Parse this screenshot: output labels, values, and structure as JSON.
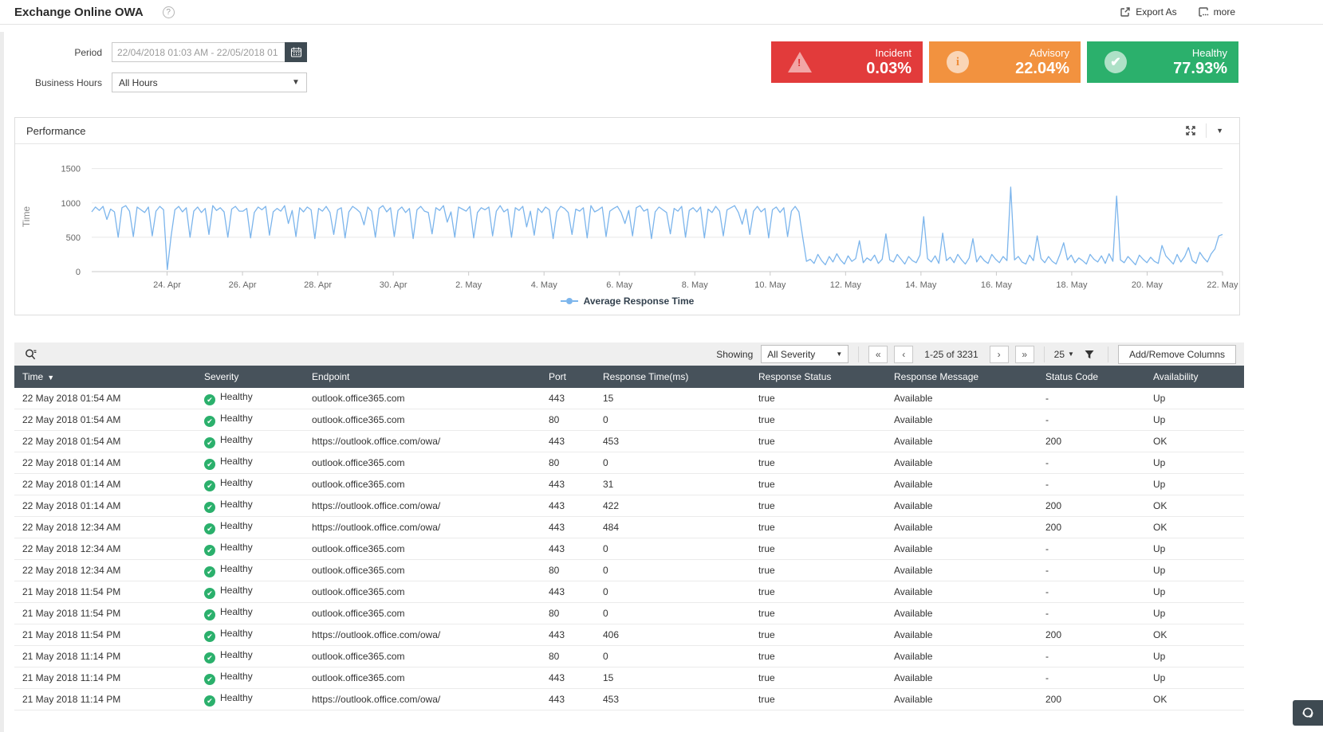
{
  "header": {
    "title": "Exchange Online OWA",
    "export_label": "Export As",
    "more_label": "more"
  },
  "filters": {
    "period_label": "Period",
    "period_value": "22/04/2018 01:03 AM - 22/05/2018 01",
    "business_hours_label": "Business Hours",
    "business_hours_value": "All Hours"
  },
  "status_cards": [
    {
      "label": "Incident",
      "value": "0.03%",
      "color": "#e23b3b",
      "icon": "warning-triangle-icon"
    },
    {
      "label": "Advisory",
      "value": "22.04%",
      "color": "#f2923f",
      "icon": "info-circle-icon"
    },
    {
      "label": "Healthy",
      "value": "77.93%",
      "color": "#2bb06c",
      "icon": "check-circle-icon"
    }
  ],
  "performance": {
    "title": "Performance"
  },
  "chart_data": {
    "type": "line",
    "title": "Performance",
    "ylabel": "Time",
    "xlabel": "",
    "grid": true,
    "legend_position": "bottom",
    "y_ticks": [
      0,
      500,
      1000,
      1500
    ],
    "y_max": 1600,
    "x_domain_days": [
      0,
      30
    ],
    "x_tick_days": [
      2,
      4,
      6,
      8,
      10,
      12,
      14,
      16,
      18,
      20,
      22,
      24,
      26,
      28,
      30
    ],
    "x_tick_labels": [
      "24. Apr",
      "26. Apr",
      "28. Apr",
      "30. Apr",
      "2. May",
      "4. May",
      "6. May",
      "8. May",
      "10. May",
      "12. May",
      "14. May",
      "16. May",
      "18. May",
      "20. May",
      "22. May"
    ],
    "series": [
      {
        "name": "Average Response Time",
        "color": "#7cb5ec",
        "y_values": [
          870,
          940,
          890,
          950,
          760,
          910,
          870,
          500,
          930,
          960,
          880,
          510,
          940,
          900,
          860,
          940,
          520,
          880,
          950,
          900,
          30,
          520,
          900,
          950,
          870,
          930,
          500,
          880,
          940,
          860,
          920,
          540,
          960,
          890,
          930,
          870,
          500,
          910,
          950,
          880,
          880,
          920,
          490,
          860,
          940,
          900,
          950,
          530,
          870,
          920,
          880,
          960,
          700,
          890,
          510,
          930,
          870,
          940,
          900,
          480,
          920,
          880,
          950,
          860,
          540,
          900,
          930,
          490,
          870,
          950,
          910,
          860,
          680,
          940,
          880,
          500,
          920,
          960,
          870,
          930,
          510,
          890,
          940,
          860,
          920,
          480,
          900,
          950,
          880,
          860,
          550,
          930,
          890,
          960,
          720,
          870,
          500,
          940,
          910,
          880,
          950,
          490,
          860,
          930,
          900,
          940,
          520,
          880,
          960,
          870,
          910,
          500,
          930,
          890,
          950,
          650,
          880,
          530,
          920,
          860,
          940,
          900,
          480,
          870,
          950,
          920,
          860,
          540,
          910,
          880,
          930,
          490,
          960,
          870,
          900,
          940,
          510,
          880,
          920,
          950,
          860,
          700,
          890,
          520,
          930,
          960,
          880,
          910,
          480,
          870,
          940,
          900,
          860,
          550,
          920,
          880,
          950,
          500,
          890,
          930,
          870,
          940,
          490,
          910,
          860,
          950,
          880,
          520,
          900,
          930,
          960,
          860,
          690,
          910,
          540,
          880,
          950,
          870,
          920,
          490,
          900,
          940,
          860,
          930,
          510,
          880,
          950,
          870,
          500,
          150,
          180,
          120,
          250,
          160,
          100,
          220,
          140,
          260,
          170,
          110,
          230,
          150,
          190,
          450,
          130,
          200,
          160,
          240,
          120,
          180,
          550,
          170,
          140,
          250,
          180,
          110,
          220,
          160,
          130,
          240,
          800,
          190,
          140,
          230,
          120,
          560,
          160,
          210,
          130,
          250,
          170,
          110,
          200,
          480,
          140,
          230,
          160,
          120,
          250,
          180,
          130,
          220,
          160,
          1230,
          170,
          220,
          140,
          110,
          240,
          160,
          520,
          190,
          130,
          220,
          150,
          110,
          250,
          420,
          170,
          240,
          130,
          200,
          160,
          110,
          250,
          180,
          140,
          230,
          120,
          260,
          150,
          1100,
          170,
          130,
          220,
          160,
          100,
          240,
          180,
          130,
          210,
          150,
          120,
          380,
          230,
          170,
          110,
          250,
          140,
          220,
          350,
          160,
          120,
          280,
          200,
          140,
          260,
          330,
          520,
          540
        ]
      }
    ]
  },
  "grid_toolbar": {
    "showing_label": "Showing",
    "severity_filter_value": "All Severity",
    "pagination": {
      "first": "«",
      "prev": "‹",
      "range": "1-25 of 3231",
      "next": "›",
      "last": "»",
      "page_size": "25"
    },
    "add_remove_columns_label": "Add/Remove Columns"
  },
  "table": {
    "columns": [
      "Time",
      "Severity",
      "Endpoint",
      "Port",
      "Response Time(ms)",
      "Response Status",
      "Response Message",
      "Status Code",
      "Availability"
    ],
    "sorted_column": "Time",
    "rows": [
      [
        "22 May 2018 01:54 AM",
        "Healthy",
        "outlook.office365.com",
        "443",
        "15",
        "true",
        "Available",
        "-",
        "Up"
      ],
      [
        "22 May 2018 01:54 AM",
        "Healthy",
        "outlook.office365.com",
        "80",
        "0",
        "true",
        "Available",
        "-",
        "Up"
      ],
      [
        "22 May 2018 01:54 AM",
        "Healthy",
        "https://outlook.office.com/owa/",
        "443",
        "453",
        "true",
        "Available",
        "200",
        "OK"
      ],
      [
        "22 May 2018 01:14 AM",
        "Healthy",
        "outlook.office365.com",
        "80",
        "0",
        "true",
        "Available",
        "-",
        "Up"
      ],
      [
        "22 May 2018 01:14 AM",
        "Healthy",
        "outlook.office365.com",
        "443",
        "31",
        "true",
        "Available",
        "-",
        "Up"
      ],
      [
        "22 May 2018 01:14 AM",
        "Healthy",
        "https://outlook.office.com/owa/",
        "443",
        "422",
        "true",
        "Available",
        "200",
        "OK"
      ],
      [
        "22 May 2018 12:34 AM",
        "Healthy",
        "https://outlook.office.com/owa/",
        "443",
        "484",
        "true",
        "Available",
        "200",
        "OK"
      ],
      [
        "22 May 2018 12:34 AM",
        "Healthy",
        "outlook.office365.com",
        "443",
        "0",
        "true",
        "Available",
        "-",
        "Up"
      ],
      [
        "22 May 2018 12:34 AM",
        "Healthy",
        "outlook.office365.com",
        "80",
        "0",
        "true",
        "Available",
        "-",
        "Up"
      ],
      [
        "21 May 2018 11:54 PM",
        "Healthy",
        "outlook.office365.com",
        "443",
        "0",
        "true",
        "Available",
        "-",
        "Up"
      ],
      [
        "21 May 2018 11:54 PM",
        "Healthy",
        "outlook.office365.com",
        "80",
        "0",
        "true",
        "Available",
        "-",
        "Up"
      ],
      [
        "21 May 2018 11:54 PM",
        "Healthy",
        "https://outlook.office.com/owa/",
        "443",
        "406",
        "true",
        "Available",
        "200",
        "OK"
      ],
      [
        "21 May 2018 11:14 PM",
        "Healthy",
        "outlook.office365.com",
        "80",
        "0",
        "true",
        "Available",
        "-",
        "Up"
      ],
      [
        "21 May 2018 11:14 PM",
        "Healthy",
        "outlook.office365.com",
        "443",
        "15",
        "true",
        "Available",
        "-",
        "Up"
      ],
      [
        "21 May 2018 11:14 PM",
        "Healthy",
        "https://outlook.office.com/owa/",
        "443",
        "453",
        "true",
        "Available",
        "200",
        "OK"
      ]
    ]
  }
}
